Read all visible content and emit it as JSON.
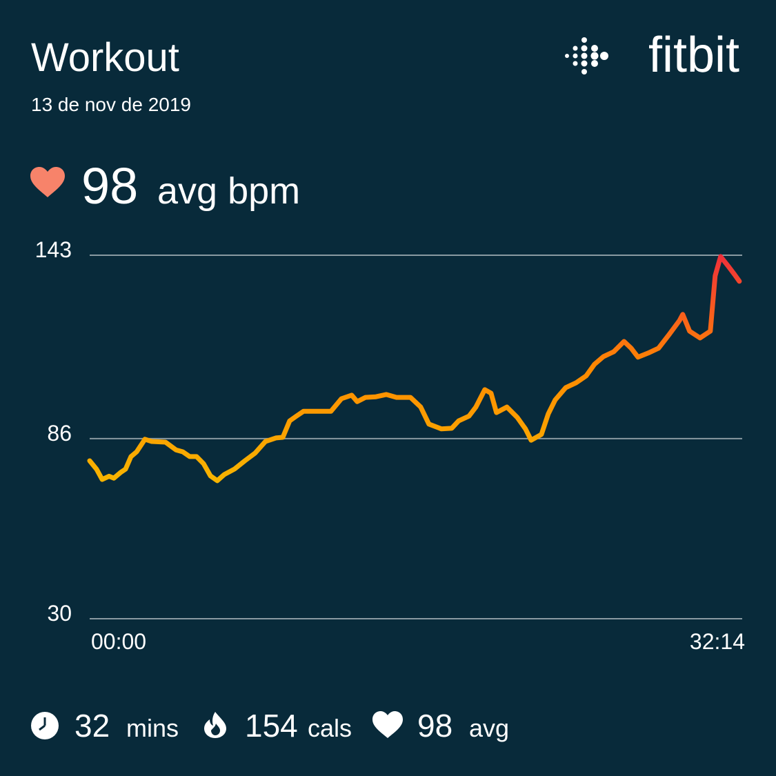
{
  "header": {
    "title": "Workout",
    "date": "13 de nov de 2019",
    "brand": "fitbit"
  },
  "summary": {
    "value": 98,
    "unit": "avg bpm"
  },
  "chart_data": {
    "type": "line",
    "x": [
      0,
      0.34,
      0.62,
      0.96,
      1.2,
      1.54,
      1.78,
      2.05,
      2.33,
      2.74,
      3.08,
      3.76,
      4.28,
      4.62,
      4.96,
      5.3,
      5.65,
      5.99,
      6.33,
      6.67,
      7.18,
      7.7,
      8.21,
      8.72,
      9.24,
      9.58,
      9.92,
      10.26,
      10.61,
      11.29,
      11.97,
      12.49,
      13.0,
      13.27,
      13.68,
      14.2,
      14.71,
      15.22,
      15.91,
      16.42,
      16.83,
      17.45,
      17.96,
      18.3,
      18.82,
      19.16,
      19.6,
      19.91,
      20.18,
      20.7,
      21.21,
      21.62,
      21.9,
      22.41,
      22.75,
      23.09,
      23.61,
      24.12,
      24.63,
      25.04,
      25.49,
      26.0,
      26.51,
      26.86,
      27.2,
      27.71,
      28.22,
      28.74,
      29.25,
      29.42,
      29.76,
      30.28,
      30.79,
      31.03,
      31.3,
      31.65,
      31.99,
      32.23
    ],
    "values": [
      79.1,
      76.5,
      73.3,
      74.3,
      73.7,
      75.5,
      76.5,
      80.4,
      81.9,
      85.8,
      85.1,
      84.9,
      82.5,
      81.9,
      80.4,
      80.4,
      78.2,
      74.4,
      72.9,
      74.8,
      76.5,
      79.1,
      81.5,
      85.1,
      86.2,
      86.4,
      91.5,
      93.0,
      94.5,
      94.5,
      94.5,
      98.4,
      99.5,
      97.5,
      98.8,
      99.0,
      99.7,
      98.8,
      98.8,
      95.8,
      90.5,
      89.0,
      89.2,
      91.5,
      93.0,
      95.8,
      101.2,
      100.1,
      94.1,
      95.8,
      92.6,
      89.0,
      85.5,
      87.3,
      93.7,
      98.0,
      101.8,
      103.3,
      105.5,
      109.1,
      111.5,
      113.0,
      116.2,
      114.1,
      111.3,
      112.6,
      114.1,
      118.3,
      122.6,
      124.6,
      119.4,
      117.3,
      119.4,
      136.6,
      142.6,
      139.8,
      137.0,
      134.9
    ],
    "colors": [
      "#f7b500",
      "#ff8a00",
      "#f0303a"
    ],
    "xlim": [
      0,
      32.2333
    ],
    "xticks": [
      {
        "value": 0,
        "label": "00:00"
      },
      {
        "value": 32.2333,
        "label": "32:14"
      }
    ],
    "ylim": [
      30,
      143
    ],
    "yticks": [
      30,
      86,
      143
    ],
    "grid": true
  },
  "stats": [
    {
      "value": 32,
      "unit": "mins"
    },
    {
      "value": 154,
      "unit": "cals"
    },
    {
      "value": 98,
      "unit": "avg"
    }
  ]
}
